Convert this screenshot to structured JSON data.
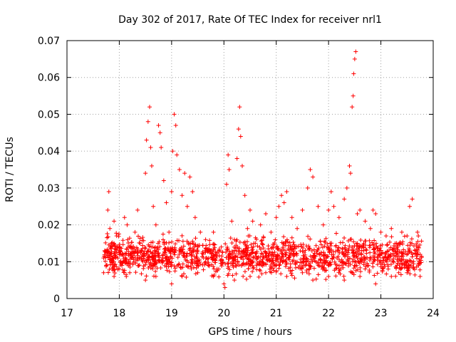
{
  "chart_data": {
    "type": "scatter",
    "title": "Day 302 of 2017, Rate Of TEC Index for receiver nrl1",
    "xlabel": "GPS time / hours",
    "ylabel": "ROTI / TECUs",
    "xlim": [
      17,
      24
    ],
    "ylim": [
      0,
      0.07
    ],
    "x_ticks": [
      "17",
      "18",
      "19",
      "20",
      "21",
      "22",
      "23",
      "24"
    ],
    "y_ticks": [
      "0",
      "0.01",
      "0.02",
      "0.03",
      "0.04",
      "0.05",
      "0.06",
      "0.07"
    ],
    "grid": true,
    "marker": "+",
    "color": "#ff0000",
    "series": [
      {
        "name": "ROTI",
        "points": [
          [
            17.7,
            0.011
          ],
          [
            17.72,
            0.013
          ],
          [
            17.75,
            0.009
          ],
          [
            17.78,
            0.024
          ],
          [
            17.8,
            0.029
          ],
          [
            17.82,
            0.019
          ],
          [
            17.85,
            0.015
          ],
          [
            17.9,
            0.021
          ],
          [
            17.95,
            0.017
          ],
          [
            18.0,
            0.012
          ],
          [
            18.05,
            0.009
          ],
          [
            18.1,
            0.022
          ],
          [
            18.15,
            0.02
          ],
          [
            18.2,
            0.014
          ],
          [
            18.25,
            0.011
          ],
          [
            18.3,
            0.018
          ],
          [
            18.35,
            0.024
          ],
          [
            18.4,
            0.015
          ],
          [
            18.45,
            0.01
          ],
          [
            18.5,
            0.034
          ],
          [
            18.52,
            0.043
          ],
          [
            18.55,
            0.048
          ],
          [
            18.58,
            0.052
          ],
          [
            18.6,
            0.041
          ],
          [
            18.62,
            0.036
          ],
          [
            18.65,
            0.025
          ],
          [
            18.7,
            0.02
          ],
          [
            18.75,
            0.047
          ],
          [
            18.78,
            0.045
          ],
          [
            18.8,
            0.041
          ],
          [
            18.85,
            0.032
          ],
          [
            18.9,
            0.026
          ],
          [
            18.95,
            0.018
          ],
          [
            19.0,
            0.029
          ],
          [
            19.02,
            0.04
          ],
          [
            19.05,
            0.05
          ],
          [
            19.08,
            0.047
          ],
          [
            19.1,
            0.039
          ],
          [
            19.15,
            0.035
          ],
          [
            19.2,
            0.028
          ],
          [
            19.25,
            0.034
          ],
          [
            19.3,
            0.025
          ],
          [
            19.35,
            0.033
          ],
          [
            19.4,
            0.029
          ],
          [
            19.45,
            0.022
          ],
          [
            19.5,
            0.014
          ],
          [
            19.55,
            0.018
          ],
          [
            19.6,
            0.012
          ],
          [
            19.65,
            0.016
          ],
          [
            19.7,
            0.009
          ],
          [
            19.75,
            0.013
          ],
          [
            19.8,
            0.018
          ],
          [
            19.85,
            0.011
          ],
          [
            19.9,
            0.008
          ],
          [
            19.95,
            0.014
          ],
          [
            20.0,
            0.004
          ],
          [
            20.02,
            0.003
          ],
          [
            20.05,
            0.031
          ],
          [
            20.08,
            0.039
          ],
          [
            20.1,
            0.035
          ],
          [
            20.15,
            0.021
          ],
          [
            20.2,
            0.016
          ],
          [
            20.25,
            0.038
          ],
          [
            20.28,
            0.046
          ],
          [
            20.3,
            0.052
          ],
          [
            20.32,
            0.044
          ],
          [
            20.35,
            0.036
          ],
          [
            20.4,
            0.028
          ],
          [
            20.45,
            0.019
          ],
          [
            20.5,
            0.024
          ],
          [
            20.55,
            0.021
          ],
          [
            20.6,
            0.015
          ],
          [
            20.7,
            0.02
          ],
          [
            20.8,
            0.023
          ],
          [
            20.9,
            0.018
          ],
          [
            21.0,
            0.022
          ],
          [
            21.05,
            0.025
          ],
          [
            21.1,
            0.028
          ],
          [
            21.15,
            0.026
          ],
          [
            21.2,
            0.029
          ],
          [
            21.3,
            0.022
          ],
          [
            21.4,
            0.019
          ],
          [
            21.5,
            0.024
          ],
          [
            21.6,
            0.03
          ],
          [
            21.65,
            0.035
          ],
          [
            21.7,
            0.033
          ],
          [
            21.8,
            0.025
          ],
          [
            21.9,
            0.02
          ],
          [
            22.0,
            0.024
          ],
          [
            22.05,
            0.029
          ],
          [
            22.1,
            0.025
          ],
          [
            22.2,
            0.022
          ],
          [
            22.3,
            0.027
          ],
          [
            22.35,
            0.03
          ],
          [
            22.4,
            0.036
          ],
          [
            22.42,
            0.034
          ],
          [
            22.45,
            0.052
          ],
          [
            22.47,
            0.055
          ],
          [
            22.48,
            0.061
          ],
          [
            22.5,
            0.065
          ],
          [
            22.52,
            0.067
          ],
          [
            22.55,
            0.023
          ],
          [
            22.6,
            0.024
          ],
          [
            22.7,
            0.021
          ],
          [
            22.8,
            0.019
          ],
          [
            22.85,
            0.024
          ],
          [
            22.9,
            0.023
          ],
          [
            23.0,
            0.018
          ],
          [
            23.1,
            0.017
          ],
          [
            23.2,
            0.019
          ],
          [
            23.3,
            0.015
          ],
          [
            23.4,
            0.018
          ],
          [
            23.5,
            0.017
          ],
          [
            23.55,
            0.025
          ],
          [
            23.6,
            0.027
          ],
          [
            23.65,
            0.013
          ],
          [
            23.7,
            0.018
          ],
          [
            23.75,
            0.012
          ],
          [
            17.7,
            0.007
          ],
          [
            17.9,
            0.006
          ],
          [
            18.2,
            0.007
          ],
          [
            18.5,
            0.005
          ],
          [
            18.7,
            0.006
          ],
          [
            19.0,
            0.004
          ],
          [
            19.2,
            0.006
          ],
          [
            19.5,
            0.007
          ],
          [
            19.8,
            0.006
          ],
          [
            20.2,
            0.005
          ],
          [
            20.5,
            0.006
          ],
          [
            20.8,
            0.007
          ],
          [
            21.2,
            0.006
          ],
          [
            21.5,
            0.007
          ],
          [
            21.7,
            0.005
          ],
          [
            22.0,
            0.006
          ],
          [
            22.3,
            0.005
          ],
          [
            22.6,
            0.006
          ],
          [
            22.9,
            0.004
          ],
          [
            23.2,
            0.006
          ],
          [
            23.5,
            0.007
          ],
          [
            23.75,
            0.006
          ]
        ]
      }
    ],
    "dense_band": {
      "x_range": [
        17.7,
        23.78
      ],
      "gaps": [
        [
          19.98,
          20.02
        ]
      ],
      "count": 1500,
      "y_min": 0.004,
      "y_max": 0.019,
      "center": 0.0115,
      "spread": 0.0035
    }
  }
}
